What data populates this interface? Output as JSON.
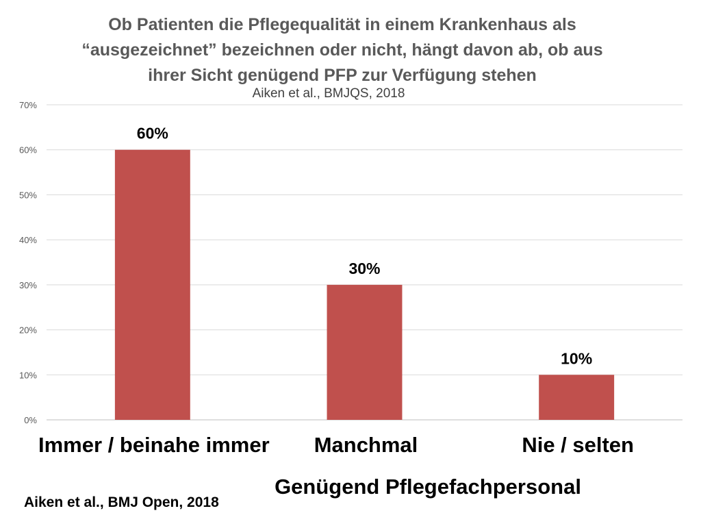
{
  "chart_data": {
    "type": "bar",
    "title_lines": [
      "Ob Patienten die Pflegequalität in einem Krankenhaus als",
      "“ausgezeichnet” bezeichnen oder nicht, hängt davon ab, ob aus",
      "ihrer Sicht genügend PFP zur Verfügung stehen"
    ],
    "subtitle": "Aiken et al., BMJQS, 2018",
    "xlabel": "Genügend Pflegefachpersonal",
    "ylabel": "",
    "categories": [
      "Immer / beinahe immer",
      "Manchmal",
      "Nie / selten"
    ],
    "values": [
      60,
      30,
      10
    ],
    "data_labels": [
      "60%",
      "30%",
      "10%"
    ],
    "ylim": [
      0,
      70
    ],
    "yticks": [
      0,
      10,
      20,
      30,
      40,
      50,
      60,
      70
    ],
    "ytick_labels": [
      "0%",
      "10%",
      "20%",
      "30%",
      "40%",
      "50%",
      "60%",
      "70%"
    ],
    "grid": true,
    "legend": "none",
    "bar_color": "#C0504D"
  },
  "footer": {
    "source": "Aiken et al., BMJ Open, 2018"
  }
}
